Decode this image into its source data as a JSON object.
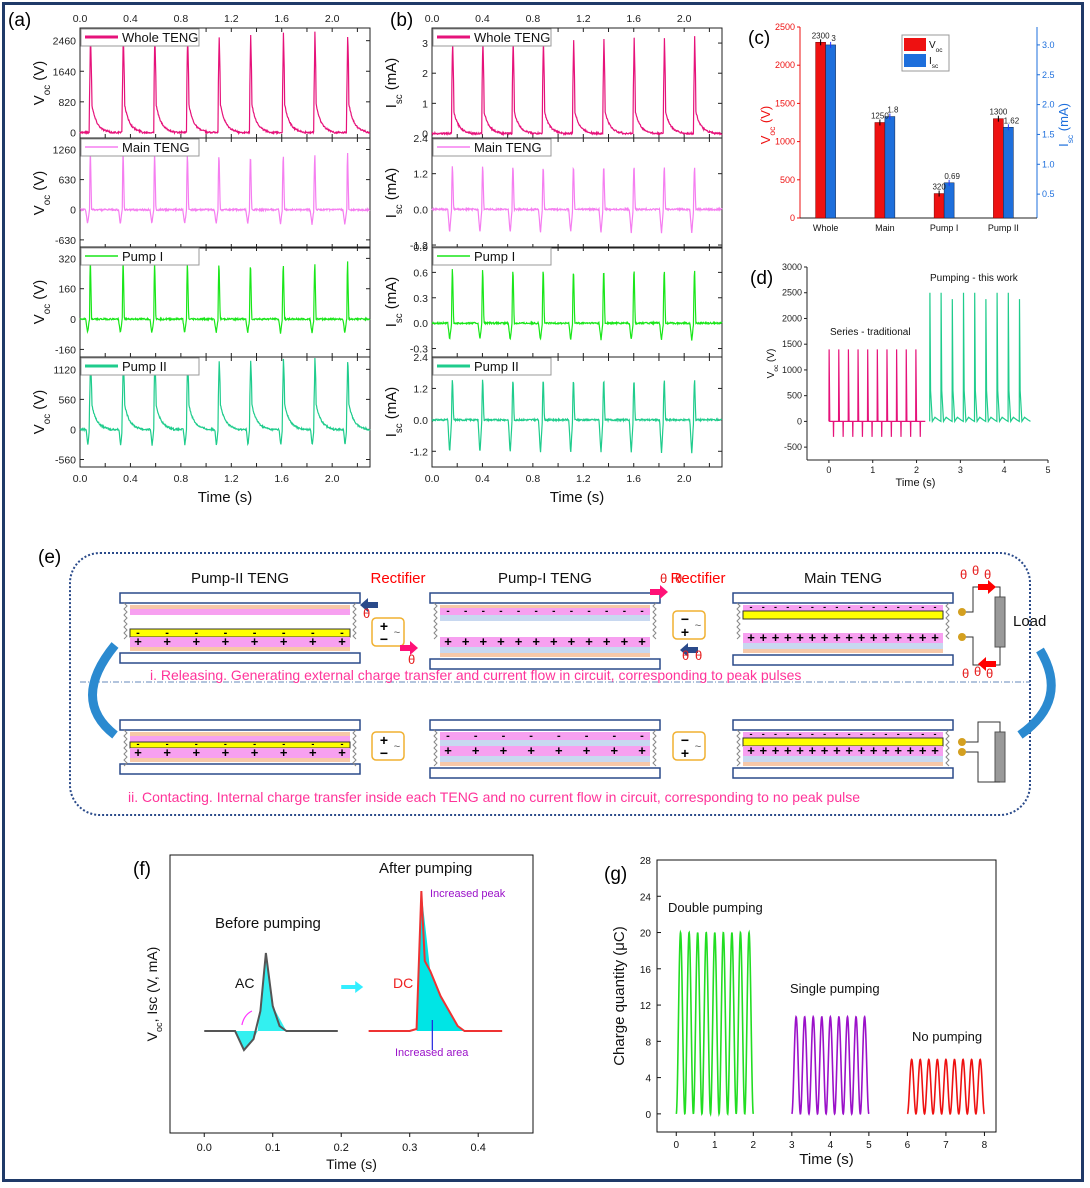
{
  "figure": {
    "border_color": "#1f3a68"
  },
  "chart_data": [
    {
      "id": "a",
      "panel_label": "(a)",
      "type": "line",
      "xlabel": "Time (s)",
      "x_ticks": [
        "0.0",
        "0.4",
        "0.8",
        "1.2",
        "1.6",
        "2.0"
      ],
      "xlim": [
        0,
        2.3
      ],
      "peak_times": [
        0.08,
        0.34,
        0.59,
        0.85,
        1.1,
        1.35,
        1.61,
        1.86,
        2.12
      ],
      "subplots": [
        {
          "name": "Whole TENG",
          "ylabel": "Voc (V)",
          "color": "#e6127a",
          "y_ticks": [
            "0",
            "820",
            "1640",
            "2460"
          ],
          "ylim": [
            -150,
            2800
          ],
          "peak": 2450,
          "shoulder": 1050,
          "trough": 0,
          "shape": "decay"
        },
        {
          "name": "Main TENG",
          "ylabel": "Voc (V)",
          "color": "#f57ef0",
          "y_ticks": [
            "-630",
            "0",
            "630",
            "1260"
          ],
          "ylim": [
            -800,
            1500
          ],
          "peak": 1260,
          "shoulder": 0,
          "trough": -300,
          "shape": "spike"
        },
        {
          "name": "Pump I",
          "ylabel": "Voc (V)",
          "color": "#19e619",
          "y_ticks": [
            "-160",
            "0",
            "160",
            "320"
          ],
          "ylim": [
            -200,
            380
          ],
          "peak": 320,
          "shoulder": 0,
          "trough": -75,
          "shape": "spike"
        },
        {
          "name": "Pump II",
          "ylabel": "Voc (V)",
          "color": "#1fcc8c",
          "y_ticks": [
            "-560",
            "0",
            "560",
            "1120"
          ],
          "ylim": [
            -700,
            1350
          ],
          "peak": 1180,
          "shoulder": 650,
          "trough": -300,
          "shape": "decay"
        }
      ]
    },
    {
      "id": "b",
      "panel_label": "(b)",
      "type": "line",
      "xlabel": "Time (s)",
      "x_ticks": [
        "0.0",
        "0.4",
        "0.8",
        "1.2",
        "1.6",
        "2.0"
      ],
      "xlim": [
        0,
        2.3
      ],
      "peak_times": [
        0.16,
        0.4,
        0.64,
        0.88,
        1.12,
        1.36,
        1.6,
        1.84,
        2.08
      ],
      "subplots": [
        {
          "name": "Whole TENG",
          "ylabel": "Isc (mA)",
          "color": "#e6127a",
          "y_ticks": [
            "0",
            "1",
            "2",
            "3"
          ],
          "ylim": [
            -0.15,
            3.5
          ],
          "peak": 3.0,
          "shoulder": 1.0,
          "trough": 0,
          "shape": "decay"
        },
        {
          "name": "Main TENG",
          "ylabel": "Isc (mA)",
          "color": "#f57ef0",
          "y_ticks": [
            "-1.2",
            "0.0",
            "1.2",
            "2.4"
          ],
          "ylim": [
            -1.3,
            2.4
          ],
          "peak": 1.6,
          "shoulder": 0,
          "trough": -0.8,
          "shape": "spike"
        },
        {
          "name": "Pump I",
          "ylabel": "Isc (mA)",
          "color": "#19e619",
          "y_ticks": [
            "-0.3",
            "0.0",
            "0.3",
            "0.6",
            "0.9"
          ],
          "ylim": [
            -0.4,
            0.9
          ],
          "peak": 0.7,
          "shoulder": 0,
          "trough": -0.2,
          "shape": "spike"
        },
        {
          "name": "Pump II",
          "ylabel": "Isc (mA)",
          "color": "#1fcc8c",
          "y_ticks": [
            "-1.2",
            "0.0",
            "1.2",
            "2.4"
          ],
          "ylim": [
            -1.8,
            2.4
          ],
          "peak": 1.7,
          "shoulder": 0.3,
          "trough": -1.3,
          "shape": "spike"
        }
      ]
    },
    {
      "id": "c",
      "panel_label": "(c)",
      "type": "bar",
      "categories": [
        "Whole",
        "Main",
        "Pump I",
        "Pump II"
      ],
      "series": [
        {
          "name": "Voc",
          "axis": "left",
          "color": "#ee1111",
          "values": [
            2300,
            1250,
            320,
            1300
          ],
          "labels": [
            "2300",
            "1250",
            "320",
            "1300"
          ]
        },
        {
          "name": "Isc",
          "axis": "right",
          "color": "#1e6fdc",
          "values": [
            3.0,
            1.8,
            0.69,
            1.62
          ],
          "labels": [
            "3",
            "1.8",
            "0.69",
            "1.62"
          ]
        }
      ],
      "ylabel_left": "Voc (V)",
      "ylabel_right": "Isc (mA)",
      "ylim_left": [
        0,
        2500
      ],
      "ylim_right": [
        0.1,
        3.3
      ],
      "y_ticks_left": [
        "0",
        "500",
        "1000",
        "1500",
        "2000",
        "2500"
      ],
      "y_ticks_right": [
        "0.5",
        "1.0",
        "1.5",
        "2.0",
        "2.5",
        "3.0"
      ],
      "legend": [
        "Voc",
        "Isc"
      ],
      "legend_position": "top-center",
      "left_axis_color": "#ee1111",
      "right_axis_color": "#1e6fdc"
    },
    {
      "id": "d",
      "panel_label": "(d)",
      "type": "line",
      "xlabel": "Time (s)",
      "ylabel": "Voc (V)",
      "xlim": [
        -0.5,
        5
      ],
      "ylim": [
        -750,
        3000
      ],
      "x_ticks": [
        "0",
        "1",
        "2",
        "3",
        "4",
        "5"
      ],
      "y_ticks": [
        "-500",
        "0",
        "500",
        "1000",
        "1500",
        "2000",
        "2500",
        "3000"
      ],
      "series": [
        {
          "name": "Series - traditional",
          "color": "#e6127a",
          "x_start": 0,
          "x_end": 2.2,
          "peak": 1400,
          "trough": -300,
          "pulses": 10
        },
        {
          "name": "Pumping - this work",
          "color": "#1fcc8c",
          "x_start": 2.3,
          "x_end": 4.6,
          "peak": 2500,
          "trough": 0,
          "pulses": 9
        }
      ],
      "annotations": [
        "Series - traditional",
        "Pumping - this work"
      ]
    },
    {
      "id": "f",
      "panel_label": "(f)",
      "type": "line",
      "xlabel": "Time (s)",
      "ylabel": "Voc, Isc (V, mA)",
      "xlim": [
        -0.05,
        0.48
      ],
      "x_ticks": [
        "0.0",
        "0.1",
        "0.2",
        "0.3",
        "0.4"
      ],
      "series": [
        {
          "name": "AC",
          "color": "#555555",
          "fill": "#33f0f0"
        },
        {
          "name": "DC",
          "color": "#ee3333",
          "fill": "#00e5e5"
        }
      ],
      "annotations": [
        "Before pumping",
        "After pumping",
        "AC",
        "DC",
        "Increased peak",
        "Increased area"
      ]
    },
    {
      "id": "g",
      "panel_label": "(g)",
      "type": "line",
      "xlabel": "Time (s)",
      "ylabel": "Charge quantity (μC)",
      "xlim": [
        -0.5,
        8.3
      ],
      "ylim": [
        -2,
        28
      ],
      "x_ticks": [
        "0",
        "1",
        "2",
        "3",
        "4",
        "5",
        "6",
        "7",
        "8"
      ],
      "y_ticks": [
        "0",
        "4",
        "8",
        "12",
        "16",
        "20",
        "24",
        "28"
      ],
      "series": [
        {
          "name": "Double pumping",
          "color": "#22dd22",
          "x_start": 0,
          "x_end": 2,
          "max": 20,
          "cycles": 9
        },
        {
          "name": "Single pumping",
          "color": "#9b11c9",
          "x_start": 3,
          "x_end": 5,
          "max": 10.7,
          "cycles": 9
        },
        {
          "name": "No pumping",
          "color": "#ee1111",
          "x_start": 6,
          "x_end": 8,
          "max": 6,
          "cycles": 9
        }
      ]
    }
  ],
  "schematic_e": {
    "panel_label": "(e)",
    "titles": [
      "Pump-II TENG",
      "Pump-I TENG",
      "Main TENG"
    ],
    "rectifier_label": "Rectifier",
    "load_label": "Load",
    "electron_symbol": "θ",
    "releasing_text": "i. Releasing.  Generating external charge transfer and current flow in circuit, corresponding to peak pulses",
    "contacting_text": "ii. Contacting. Internal charge transfer inside each TENG and no current flow in circuit, corresponding to no peak pulse",
    "caption_color": "#ff3399",
    "rectifier_color": "#ff0000"
  }
}
